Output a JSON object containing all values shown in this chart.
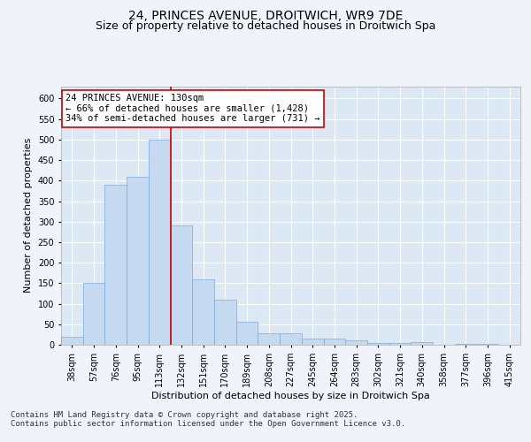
{
  "title_line1": "24, PRINCES AVENUE, DROITWICH, WR9 7DE",
  "title_line2": "Size of property relative to detached houses in Droitwich Spa",
  "xlabel": "Distribution of detached houses by size in Droitwich Spa",
  "ylabel": "Number of detached properties",
  "categories": [
    "38sqm",
    "57sqm",
    "76sqm",
    "95sqm",
    "113sqm",
    "132sqm",
    "151sqm",
    "170sqm",
    "189sqm",
    "208sqm",
    "227sqm",
    "245sqm",
    "264sqm",
    "283sqm",
    "302sqm",
    "321sqm",
    "340sqm",
    "358sqm",
    "377sqm",
    "396sqm",
    "415sqm"
  ],
  "values": [
    20,
    150,
    390,
    410,
    500,
    290,
    160,
    110,
    55,
    28,
    28,
    15,
    15,
    10,
    5,
    5,
    7,
    0,
    2,
    2,
    1
  ],
  "bar_color": "#c5d9f0",
  "bar_edge_color": "#7aabdb",
  "reference_line_x": 4.5,
  "reference_line_color": "#cc0000",
  "annotation_text": "24 PRINCES AVENUE: 130sqm\n← 66% of detached houses are smaller (1,428)\n34% of semi-detached houses are larger (731) →",
  "annotation_box_color": "#ffffff",
  "annotation_box_edge": "#cc0000",
  "ylim": [
    0,
    630
  ],
  "yticks": [
    0,
    50,
    100,
    150,
    200,
    250,
    300,
    350,
    400,
    450,
    500,
    550,
    600
  ],
  "bg_color": "#dce9f5",
  "grid_color": "#ffffff",
  "fig_bg_color": "#f0f4fa",
  "footer_text": "Contains HM Land Registry data © Crown copyright and database right 2025.\nContains public sector information licensed under the Open Government Licence v3.0.",
  "title_fontsize": 10,
  "subtitle_fontsize": 9,
  "axis_label_fontsize": 8,
  "tick_fontsize": 7,
  "annotation_fontsize": 7.5,
  "footer_fontsize": 6.5
}
